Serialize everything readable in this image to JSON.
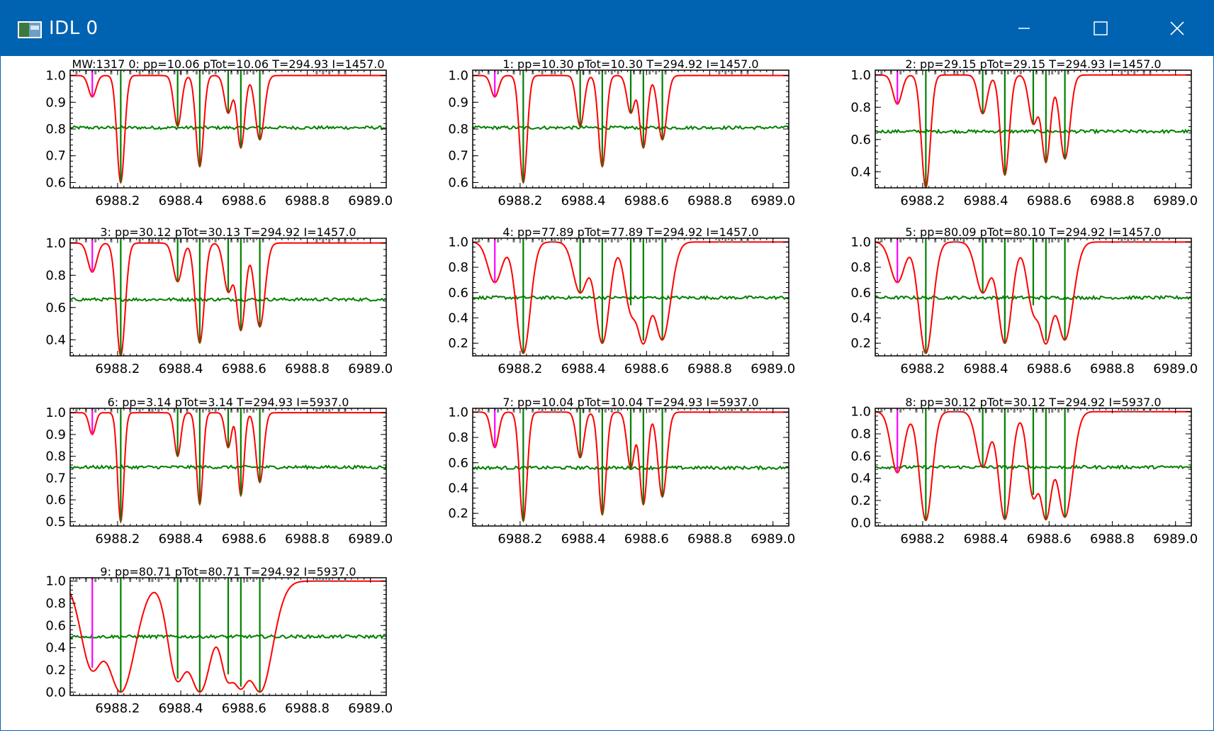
{
  "window": {
    "title": "IDL 0",
    "buttons": {
      "minimize": "minimize",
      "maximize": "maximize",
      "close": "close"
    }
  },
  "colors": {
    "titlebar": "#0063b1",
    "model": "#ff0000",
    "observed": "#008000",
    "residual": "#008000",
    "first_line": "#ff00ff",
    "line_markers": "#808080"
  },
  "chart_data": [
    {
      "type": "line",
      "title": "MW:1317 0: pp=10.06 pTot=10.06 T=294.93 I=1457.0",
      "xticks": [
        "6988.2",
        "6988.4",
        "6988.6",
        "6988.8",
        "6989.0"
      ],
      "xlim": [
        6988.05,
        6989.05
      ],
      "yticks": [
        "0.6",
        "0.7",
        "0.8",
        "0.9",
        "1.0"
      ],
      "ylim": [
        0.58,
        1.02
      ],
      "residual_level": 0.805,
      "dips": [
        [
          6988.12,
          0.92,
          0.012
        ],
        [
          6988.21,
          0.6,
          0.012
        ],
        [
          6988.39,
          0.81,
          0.012
        ],
        [
          6988.46,
          0.66,
          0.012
        ],
        [
          6988.55,
          0.86,
          0.012
        ],
        [
          6988.59,
          0.73,
          0.012
        ],
        [
          6988.65,
          0.76,
          0.014
        ]
      ]
    },
    {
      "type": "line",
      "title": "1: pp=10.30 pTot=10.30 T=294.92 I=1457.0",
      "xticks": [
        "6988.2",
        "6988.4",
        "6988.6",
        "6988.8",
        "6989.0"
      ],
      "xlim": [
        6988.05,
        6989.05
      ],
      "yticks": [
        "0.6",
        "0.7",
        "0.8",
        "0.9",
        "1.0"
      ],
      "ylim": [
        0.58,
        1.02
      ],
      "residual_level": 0.805,
      "dips": [
        [
          6988.12,
          0.92,
          0.012
        ],
        [
          6988.21,
          0.6,
          0.012
        ],
        [
          6988.39,
          0.81,
          0.012
        ],
        [
          6988.46,
          0.66,
          0.012
        ],
        [
          6988.55,
          0.86,
          0.012
        ],
        [
          6988.59,
          0.73,
          0.012
        ],
        [
          6988.65,
          0.76,
          0.014
        ]
      ]
    },
    {
      "type": "line",
      "title": "2: pp=29.15 pTot=29.15 T=294.93 I=1457.0",
      "xticks": [
        "6988.2",
        "6988.4",
        "6988.6",
        "6988.8",
        "6989.0"
      ],
      "xlim": [
        6988.05,
        6989.05
      ],
      "yticks": [
        "0.4",
        "0.6",
        "0.8",
        "1.0"
      ],
      "ylim": [
        0.3,
        1.03
      ],
      "residual_level": 0.65,
      "dips": [
        [
          6988.12,
          0.82,
          0.014
        ],
        [
          6988.21,
          0.3,
          0.014
        ],
        [
          6988.39,
          0.76,
          0.014
        ],
        [
          6988.46,
          0.38,
          0.014
        ],
        [
          6988.55,
          0.7,
          0.014
        ],
        [
          6988.59,
          0.46,
          0.014
        ],
        [
          6988.65,
          0.48,
          0.016
        ]
      ]
    },
    {
      "type": "line",
      "title": "3: pp=30.12 pTot=30.13 T=294.92 I=1457.0",
      "xticks": [
        "6988.2",
        "6988.4",
        "6988.6",
        "6988.8",
        "6989.0"
      ],
      "xlim": [
        6988.05,
        6989.05
      ],
      "yticks": [
        "0.4",
        "0.6",
        "0.8",
        "1.0"
      ],
      "ylim": [
        0.3,
        1.03
      ],
      "residual_level": 0.65,
      "dips": [
        [
          6988.12,
          0.82,
          0.014
        ],
        [
          6988.21,
          0.3,
          0.014
        ],
        [
          6988.39,
          0.76,
          0.014
        ],
        [
          6988.46,
          0.38,
          0.014
        ],
        [
          6988.55,
          0.7,
          0.014
        ],
        [
          6988.59,
          0.46,
          0.014
        ],
        [
          6988.65,
          0.48,
          0.016
        ]
      ]
    },
    {
      "type": "line",
      "title": "4: pp=77.89 pTot=77.89 T=294.92 I=1457.0",
      "xticks": [
        "6988.2",
        "6988.4",
        "6988.6",
        "6988.8",
        "6989.0"
      ],
      "xlim": [
        6988.05,
        6989.05
      ],
      "yticks": [
        "0.2",
        "0.4",
        "0.6",
        "0.8",
        "1.0"
      ],
      "ylim": [
        0.1,
        1.03
      ],
      "residual_level": 0.56,
      "dips": [
        [
          6988.12,
          0.68,
          0.022
        ],
        [
          6988.21,
          0.12,
          0.022
        ],
        [
          6988.39,
          0.6,
          0.022
        ],
        [
          6988.46,
          0.2,
          0.022
        ],
        [
          6988.55,
          0.5,
          0.02
        ],
        [
          6988.59,
          0.22,
          0.022
        ],
        [
          6988.65,
          0.23,
          0.026
        ]
      ]
    },
    {
      "type": "line",
      "title": "5: pp=80.09 pTot=80.10 T=294.92 I=1457.0",
      "xticks": [
        "6988.2",
        "6988.4",
        "6988.6",
        "6988.8",
        "6989.0"
      ],
      "xlim": [
        6988.05,
        6989.05
      ],
      "yticks": [
        "0.2",
        "0.4",
        "0.6",
        "0.8",
        "1.0"
      ],
      "ylim": [
        0.1,
        1.03
      ],
      "residual_level": 0.56,
      "dips": [
        [
          6988.12,
          0.68,
          0.022
        ],
        [
          6988.21,
          0.12,
          0.022
        ],
        [
          6988.39,
          0.6,
          0.022
        ],
        [
          6988.46,
          0.2,
          0.022
        ],
        [
          6988.55,
          0.5,
          0.02
        ],
        [
          6988.59,
          0.22,
          0.022
        ],
        [
          6988.65,
          0.23,
          0.026
        ]
      ]
    },
    {
      "type": "line",
      "title": "6: pp=3.14 pTot=3.14 T=294.93 I=5937.0",
      "xticks": [
        "6988.2",
        "6988.4",
        "6988.6",
        "6988.8",
        "6989.0"
      ],
      "xlim": [
        6988.05,
        6989.05
      ],
      "yticks": [
        "0.5",
        "0.6",
        "0.7",
        "0.8",
        "0.9",
        "1.0"
      ],
      "ylim": [
        0.48,
        1.02
      ],
      "residual_level": 0.75,
      "dips": [
        [
          6988.12,
          0.9,
          0.01
        ],
        [
          6988.21,
          0.5,
          0.01
        ],
        [
          6988.39,
          0.8,
          0.01
        ],
        [
          6988.46,
          0.58,
          0.01
        ],
        [
          6988.55,
          0.84,
          0.01
        ],
        [
          6988.59,
          0.62,
          0.01
        ],
        [
          6988.65,
          0.68,
          0.012
        ]
      ]
    },
    {
      "type": "line",
      "title": "7: pp=10.04 pTot=10.04 T=294.93 I=5937.0",
      "xticks": [
        "6988.2",
        "6988.4",
        "6988.6",
        "6988.8",
        "6989.0"
      ],
      "xlim": [
        6988.05,
        6989.05
      ],
      "yticks": [
        "0.2",
        "0.4",
        "0.6",
        "0.8",
        "1.0"
      ],
      "ylim": [
        0.1,
        1.03
      ],
      "residual_level": 0.56,
      "dips": [
        [
          6988.12,
          0.72,
          0.012
        ],
        [
          6988.21,
          0.14,
          0.012
        ],
        [
          6988.39,
          0.64,
          0.012
        ],
        [
          6988.46,
          0.19,
          0.012
        ],
        [
          6988.55,
          0.56,
          0.012
        ],
        [
          6988.59,
          0.27,
          0.012
        ],
        [
          6988.65,
          0.33,
          0.014
        ]
      ]
    },
    {
      "type": "line",
      "title": "8: pp=30.12 pTot=30.12 T=294.92 I=5937.0",
      "xticks": [
        "6988.2",
        "6988.4",
        "6988.6",
        "6988.8",
        "6989.0"
      ],
      "xlim": [
        6988.05,
        6989.05
      ],
      "yticks": [
        "0.0",
        "0.2",
        "0.4",
        "0.6",
        "0.8",
        "1.0"
      ],
      "ylim": [
        -0.03,
        1.03
      ],
      "residual_level": 0.5,
      "dips": [
        [
          6988.12,
          0.45,
          0.02
        ],
        [
          6988.21,
          0.02,
          0.02
        ],
        [
          6988.39,
          0.5,
          0.02
        ],
        [
          6988.46,
          0.03,
          0.02
        ],
        [
          6988.55,
          0.25,
          0.018
        ],
        [
          6988.59,
          0.03,
          0.02
        ],
        [
          6988.65,
          0.05,
          0.024
        ]
      ]
    },
    {
      "type": "line",
      "title": "9: pp=80.71 pTot=80.71 T=294.92 I=5937.0",
      "xticks": [
        "6988.2",
        "6988.4",
        "6988.6",
        "6988.8",
        "6989.0"
      ],
      "xlim": [
        6988.05,
        6989.05
      ],
      "yticks": [
        "0.0",
        "0.2",
        "0.4",
        "0.6",
        "0.8",
        "1.0"
      ],
      "ylim": [
        -0.03,
        1.03
      ],
      "residual_level": 0.5,
      "dips": [
        [
          6988.12,
          0.22,
          0.035
        ],
        [
          6988.21,
          0.0,
          0.045
        ],
        [
          6988.39,
          0.12,
          0.03
        ],
        [
          6988.46,
          0.0,
          0.04
        ],
        [
          6988.55,
          0.16,
          0.025
        ],
        [
          6988.59,
          0.05,
          0.03
        ],
        [
          6988.65,
          0.0,
          0.04
        ]
      ]
    }
  ]
}
